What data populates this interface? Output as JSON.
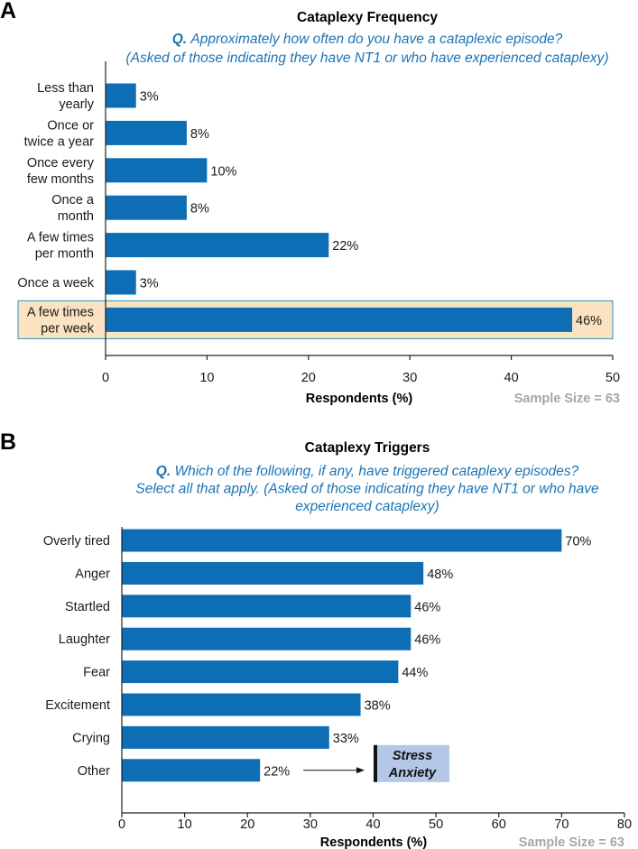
{
  "chart_data": [
    {
      "panel_label": "A",
      "type": "bar",
      "orientation": "horizontal",
      "title": "Cataplexy Frequency",
      "question_prefix": "Q.",
      "question_lines": [
        "Approximately how often do you have a cataplexic episode?",
        "(Asked of those indicating they have NT1 or who have experienced cataplexy)"
      ],
      "categories": [
        [
          "Less than",
          "yearly"
        ],
        [
          "Once or",
          "twice a year"
        ],
        [
          "Once every",
          "few months"
        ],
        [
          "Once a",
          "month"
        ],
        [
          "A few times",
          "per month"
        ],
        [
          "Once a week"
        ],
        [
          "A few times",
          "per week"
        ]
      ],
      "values": [
        3,
        8,
        10,
        8,
        22,
        3,
        46
      ],
      "value_labels": [
        "3%",
        "8%",
        "10%",
        "8%",
        "22%",
        "3%",
        "46%"
      ],
      "highlighted_category_index": 6,
      "xlabel": "Respondents (%)",
      "xlim": [
        0,
        50
      ],
      "xticks": [
        0,
        10,
        20,
        30,
        40,
        50
      ],
      "xtick_labels": [
        "0",
        "10",
        "20",
        "30",
        "40",
        "50"
      ],
      "sample_size": "Sample Size = 63",
      "bar_color": "#0d6db5",
      "highlight_fill": "#fbe3c2",
      "highlight_stroke": "#2f8fc4"
    },
    {
      "panel_label": "B",
      "type": "bar",
      "orientation": "horizontal",
      "title": "Cataplexy Triggers",
      "question_prefix": "Q.",
      "question_lines": [
        "Which of the following, if any, have triggered cataplexy episodes?",
        "Select all that apply. (Asked of those indicating they have NT1 or who have",
        "experienced cataplexy)"
      ],
      "categories": [
        [
          "Overly tired"
        ],
        [
          "Anger"
        ],
        [
          "Startled"
        ],
        [
          "Laughter"
        ],
        [
          "Fear"
        ],
        [
          "Excitement"
        ],
        [
          "Crying"
        ],
        [
          "Other"
        ]
      ],
      "values": [
        70,
        48,
        46,
        46,
        44,
        38,
        33,
        22
      ],
      "value_labels": [
        "70%",
        "48%",
        "46%",
        "46%",
        "44%",
        "38%",
        "33%",
        "22%"
      ],
      "xlabel": "Respondents (%)",
      "xlim": [
        0,
        80
      ],
      "xticks": [
        0,
        10,
        20,
        30,
        40,
        50,
        60,
        70,
        80
      ],
      "xtick_labels": [
        "0",
        "10",
        "20",
        "30",
        "40",
        "50",
        "60",
        "70",
        "80"
      ],
      "sample_size": "Sample Size = 63",
      "bar_color": "#0d6db5",
      "annotation": {
        "target_category_index": 7,
        "lines": [
          "Stress",
          "Anxiety"
        ],
        "box_fill": "#b4c7e7"
      }
    }
  ]
}
